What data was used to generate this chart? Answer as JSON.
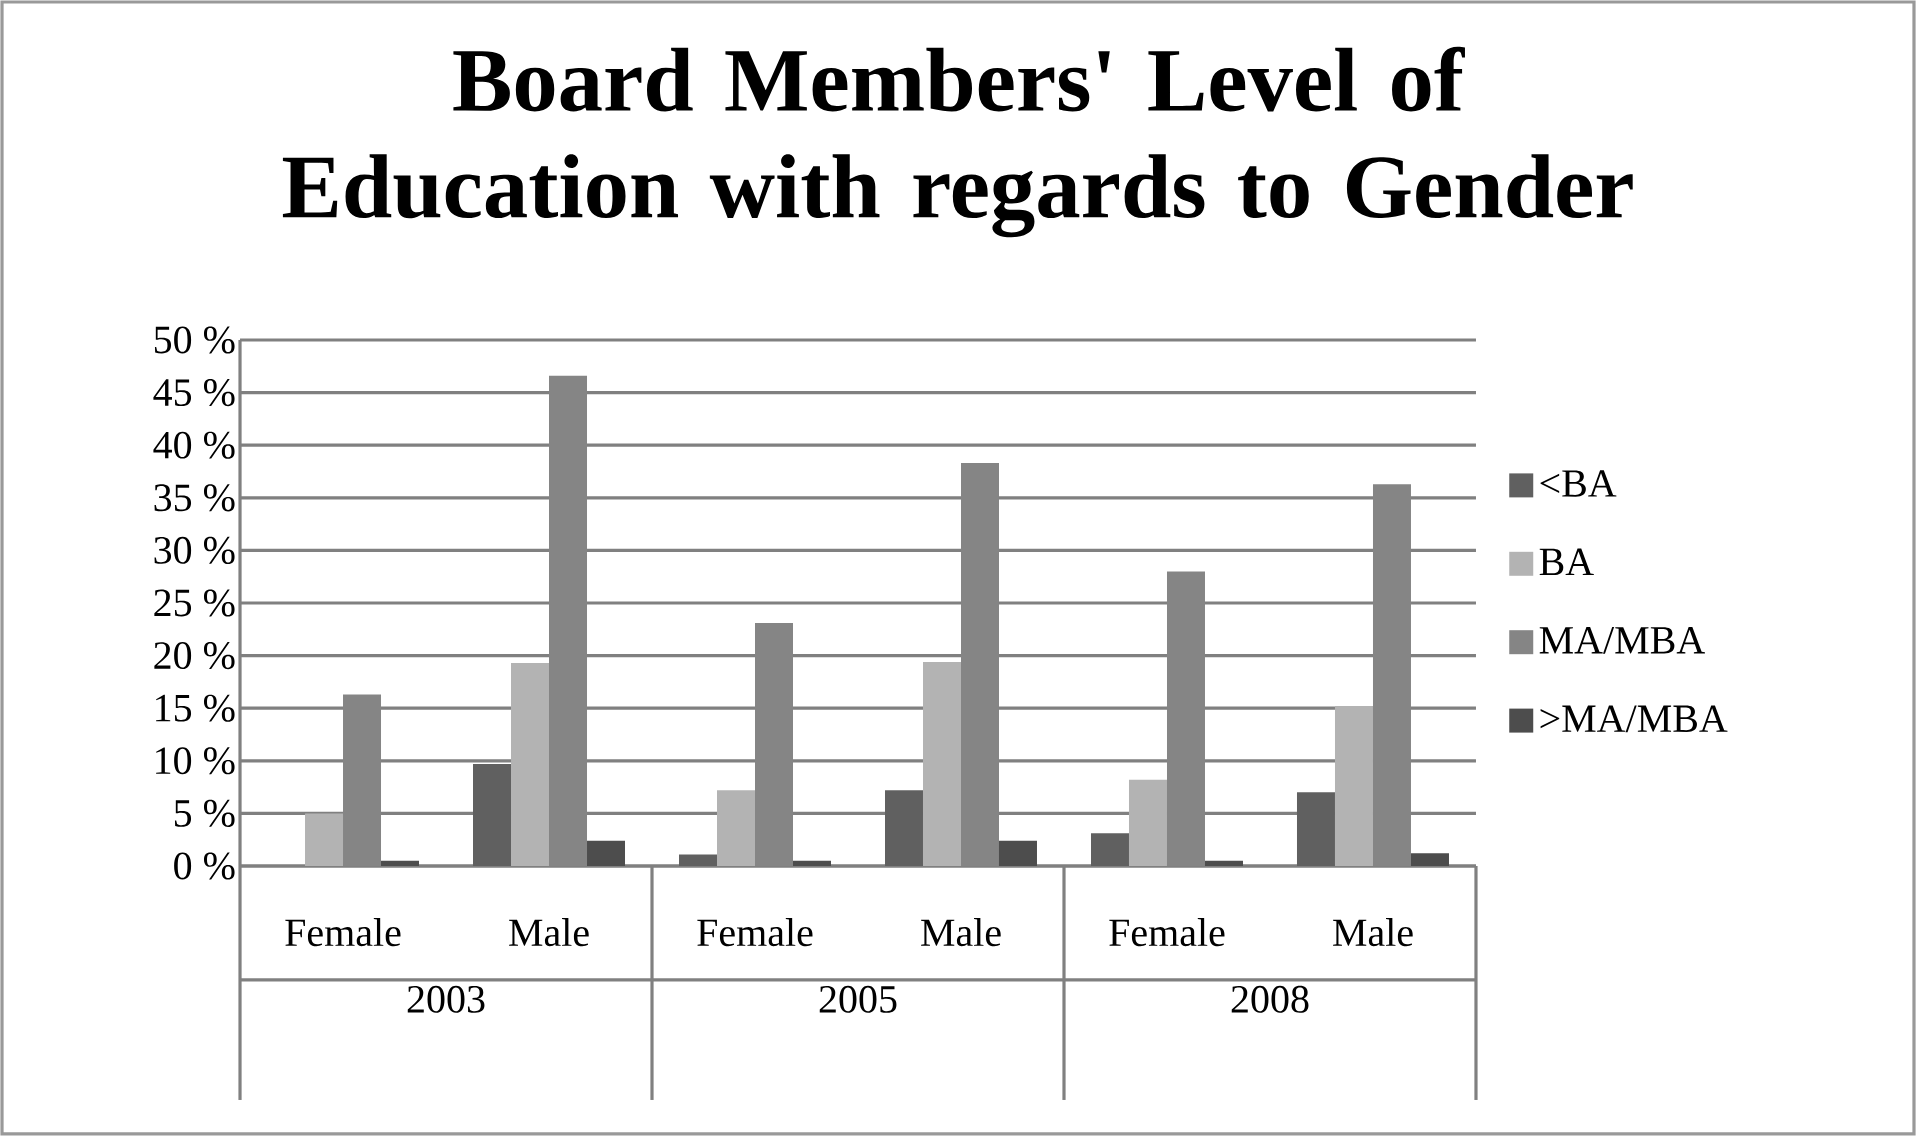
{
  "chart_data": {
    "type": "bar",
    "title": "Board Members' Level of Education with regards to Gender",
    "categories": [
      "Female",
      "Male",
      "Female",
      "Male",
      "Female",
      "Male"
    ],
    "annotations": [
      "2003",
      "2005",
      "2008"
    ],
    "series": [
      {
        "name": "<BA",
        "color": "#606060",
        "values": [
          0,
          9.7,
          1.1,
          7.2,
          3.1,
          7.0
        ]
      },
      {
        "name": "BA",
        "color": "#b3b3b3",
        "values": [
          5.0,
          19.3,
          7.2,
          19.4,
          8.2,
          15.2
        ]
      },
      {
        "name": "MA/MBA",
        "color": "#858585",
        "values": [
          16.3,
          46.6,
          23.1,
          38.3,
          28.0,
          36.3
        ]
      },
      {
        "name": ">MA/MBA",
        "color": "#4d4d4d",
        "values": [
          0.5,
          2.4,
          0.5,
          2.4,
          0.5,
          1.2
        ]
      }
    ],
    "ylim": [
      0,
      50
    ],
    "yticks": [
      {
        "value": 0,
        "label": "0 %"
      },
      {
        "value": 5,
        "label": "5 %"
      },
      {
        "value": 10,
        "label": "10 %"
      },
      {
        "value": 15,
        "label": "15 %"
      },
      {
        "value": 20,
        "label": "20 %"
      },
      {
        "value": 25,
        "label": "25 %"
      },
      {
        "value": 30,
        "label": "30 %"
      },
      {
        "value": 35,
        "label": "35 %"
      },
      {
        "value": 40,
        "label": "40 %"
      },
      {
        "value": 45,
        "label": "45 %"
      },
      {
        "value": 50,
        "label": "50 %"
      }
    ],
    "grid": "y",
    "legend": "right"
  }
}
